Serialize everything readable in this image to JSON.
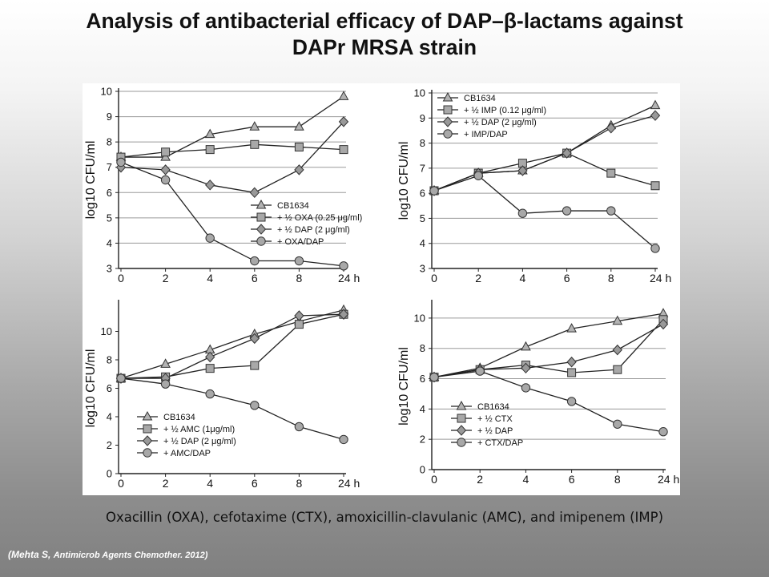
{
  "slide": {
    "title_line1": "Analysis of antibacterial efficacy of DAP–β-lactams against",
    "title_line2": "DAPr MRSA strain",
    "caption": "Oxacillin (OXA), cefotaxime (CTX), amoxicillin-clavulanic (AMC), and imipenem (IMP)",
    "citation_open": "(",
    "citation_author": "Mehta S, ",
    "citation_journal": "Antimicrob Agents Chemother. 2012)"
  },
  "chart_data": [
    {
      "type": "line",
      "ylabel": "log10 CFU/ml",
      "x": [
        0,
        2,
        4,
        6,
        8,
        10
      ],
      "x_tick_labels": [
        "0",
        "2",
        "4",
        "6",
        "8",
        "24 h"
      ],
      "ylim": [
        3,
        10
      ],
      "y_ticks": [
        3,
        4,
        5,
        6,
        7,
        8,
        9,
        10
      ],
      "grid": true,
      "legend_position": "bottom-right",
      "series": [
        {
          "name": "CB1634",
          "marker": "triangle",
          "values": [
            7.4,
            7.4,
            8.3,
            8.6,
            8.6,
            9.8
          ]
        },
        {
          "name": "+ ½ OXA (0.25 μg/ml)",
          "marker": "square",
          "values": [
            7.4,
            7.6,
            7.7,
            7.9,
            7.8,
            7.7
          ]
        },
        {
          "name": "+ ½ DAP (2 μg/ml)",
          "marker": "diamond",
          "values": [
            7.0,
            6.9,
            6.3,
            6.0,
            6.9,
            8.8
          ]
        },
        {
          "name": "+ OXA/DAP",
          "marker": "circle",
          "values": [
            7.2,
            6.5,
            4.2,
            3.3,
            3.3,
            3.1
          ]
        }
      ]
    },
    {
      "type": "line",
      "ylabel": "log10 CFU/ml",
      "x": [
        0,
        2,
        4,
        6,
        8,
        10
      ],
      "x_tick_labels": [
        "0",
        "2",
        "4",
        "6",
        "8",
        "24 h"
      ],
      "ylim": [
        3,
        10
      ],
      "y_ticks": [
        3,
        4,
        5,
        6,
        7,
        8,
        9,
        10
      ],
      "grid": true,
      "legend_position": "top-left",
      "series": [
        {
          "name": "CB1634",
          "marker": "triangle",
          "values": [
            6.1,
            6.8,
            6.9,
            7.6,
            8.7,
            9.5
          ]
        },
        {
          "name": "+ ½ IMP (0.12 μg/ml)",
          "marker": "square",
          "values": [
            6.1,
            6.8,
            7.2,
            7.6,
            6.8,
            6.3
          ]
        },
        {
          "name": "+ ½ DAP (2 μg/ml)",
          "marker": "diamond",
          "values": [
            6.1,
            6.8,
            6.9,
            7.6,
            8.6,
            9.1
          ]
        },
        {
          "name": "+ IMP/DAP",
          "marker": "circle",
          "values": [
            6.1,
            6.7,
            5.2,
            5.3,
            5.3,
            3.8
          ]
        }
      ]
    },
    {
      "type": "line",
      "ylabel": "log10 CFU/ml",
      "x": [
        0,
        2,
        4,
        6,
        8,
        10
      ],
      "x_tick_labels": [
        "0",
        "2",
        "4",
        "6",
        "8",
        "24 h"
      ],
      "ylim": [
        0,
        12
      ],
      "y_ticks": [
        0,
        2,
        4,
        6,
        8,
        10
      ],
      "grid": false,
      "legend_position": "bottom-left",
      "series": [
        {
          "name": "CB1634",
          "marker": "triangle",
          "values": [
            6.7,
            7.7,
            8.7,
            9.8,
            10.7,
            11.5
          ]
        },
        {
          "name": "+ ½ AMC (1μg/ml)",
          "marker": "square",
          "values": [
            6.7,
            6.8,
            7.4,
            7.6,
            10.5,
            11.2
          ]
        },
        {
          "name": "+ ½ DAP (2 μg/ml)",
          "marker": "diamond",
          "values": [
            6.7,
            6.7,
            8.2,
            9.5,
            11.1,
            11.2
          ]
        },
        {
          "name": "+ AMC/DAP",
          "marker": "circle",
          "values": [
            6.7,
            6.3,
            5.6,
            4.8,
            3.3,
            2.4
          ]
        }
      ]
    },
    {
      "type": "line",
      "ylabel": "log10 CFU/ml",
      "x": [
        0,
        2,
        4,
        6,
        8,
        10
      ],
      "x_tick_labels": [
        "0",
        "2",
        "4",
        "6",
        "8",
        "24 h"
      ],
      "ylim": [
        0,
        11
      ],
      "y_ticks": [
        0,
        2,
        4,
        6,
        8,
        10
      ],
      "grid": true,
      "legend_position": "bottom-left",
      "series": [
        {
          "name": "CB1634",
          "marker": "triangle",
          "values": [
            6.1,
            6.7,
            8.1,
            9.3,
            9.8,
            10.3
          ]
        },
        {
          "name": "+ ½ CTX",
          "marker": "square",
          "values": [
            6.1,
            6.6,
            6.9,
            6.4,
            6.6,
            9.9
          ]
        },
        {
          "name": "+ ½ DAP",
          "marker": "diamond",
          "values": [
            6.1,
            6.6,
            6.7,
            7.1,
            7.9,
            9.6
          ]
        },
        {
          "name": "+ CTX/DAP",
          "marker": "circle",
          "values": [
            6.1,
            6.5,
            5.4,
            4.5,
            3.0,
            2.5
          ]
        }
      ]
    }
  ]
}
